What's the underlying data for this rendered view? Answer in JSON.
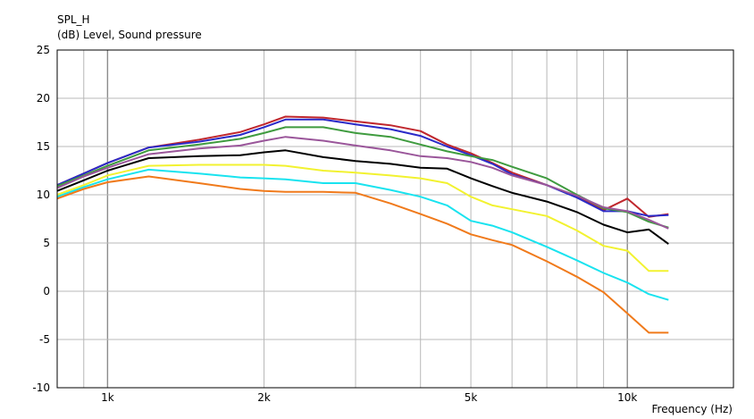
{
  "chart_data": {
    "type": "line",
    "title": "SPL_H",
    "ylabel": "(dB)  Level, Sound pressure",
    "xlabel": "Frequency  (Hz)",
    "x_scale": "log",
    "xlim": [
      800,
      16000
    ],
    "ylim": [
      -10,
      25
    ],
    "grid": true,
    "x_tick_labels": [
      {
        "value": 1000,
        "label": "1k"
      },
      {
        "value": 2000,
        "label": "2k"
      },
      {
        "value": 5000,
        "label": "5k"
      },
      {
        "value": 10000,
        "label": "10k"
      }
    ],
    "y_ticks": [
      25,
      20,
      15,
      10,
      5,
      0,
      -5,
      -10
    ],
    "series": [
      {
        "color": "#c0272d",
        "x": [
          800,
          900,
          1000,
          1200,
          1500,
          1800,
          2000,
          2200,
          2600,
          3000,
          3500,
          4000,
          4500,
          5000,
          5500,
          6000,
          7000,
          8000,
          9000,
          10000,
          11000,
          12000
        ],
        "y": [
          11.0,
          12.2,
          13.3,
          14.9,
          15.7,
          16.5,
          17.3,
          18.1,
          18.0,
          17.6,
          17.2,
          16.6,
          15.2,
          14.3,
          13.3,
          12.3,
          11.0,
          9.8,
          8.4,
          9.6,
          7.7,
          8.0
        ]
      },
      {
        "color": "#2a2ac8",
        "x": [
          800,
          900,
          1000,
          1200,
          1500,
          1800,
          2000,
          2200,
          2600,
          3000,
          3500,
          4000,
          4500,
          5000,
          5500,
          6000,
          7000,
          8000,
          9000,
          10000,
          11000,
          12000
        ],
        "y": [
          11.0,
          12.2,
          13.3,
          14.9,
          15.5,
          16.2,
          17.0,
          17.8,
          17.8,
          17.3,
          16.8,
          16.1,
          15.0,
          14.1,
          13.2,
          12.1,
          11.0,
          9.7,
          8.3,
          8.3,
          7.8,
          7.9
        ]
      },
      {
        "color": "#3f9b3f",
        "x": [
          800,
          900,
          1000,
          1200,
          1500,
          1800,
          2000,
          2200,
          2600,
          3000,
          3500,
          4000,
          4500,
          5000,
          5500,
          6000,
          7000,
          8000,
          9000,
          10000,
          11000,
          12000
        ],
        "y": [
          10.9,
          12.0,
          13.0,
          14.6,
          15.2,
          15.8,
          16.4,
          17.0,
          17.0,
          16.4,
          16.0,
          15.2,
          14.5,
          14.0,
          13.6,
          12.9,
          11.7,
          10.0,
          8.6,
          8.2,
          7.2,
          6.6
        ]
      },
      {
        "color": "#9a569a",
        "x": [
          800,
          900,
          1000,
          1200,
          1500,
          1800,
          2000,
          2200,
          2600,
          3000,
          3500,
          4000,
          4500,
          5000,
          5500,
          6000,
          7000,
          8000,
          9000,
          10000,
          11000,
          12000
        ],
        "y": [
          10.7,
          11.9,
          12.8,
          14.2,
          14.8,
          15.1,
          15.6,
          16.0,
          15.6,
          15.1,
          14.6,
          14.0,
          13.8,
          13.4,
          12.8,
          12.0,
          11.0,
          9.9,
          8.7,
          8.3,
          7.4,
          6.5
        ]
      },
      {
        "color": "#000000",
        "x": [
          800,
          900,
          1000,
          1200,
          1500,
          1800,
          2000,
          2200,
          2600,
          3000,
          3500,
          4000,
          4500,
          5000,
          5500,
          6000,
          7000,
          8000,
          9000,
          10000,
          11000,
          12000
        ],
        "y": [
          10.4,
          11.5,
          12.5,
          13.8,
          14.0,
          14.1,
          14.4,
          14.6,
          13.9,
          13.5,
          13.2,
          12.8,
          12.7,
          11.7,
          10.9,
          10.2,
          9.3,
          8.2,
          6.9,
          6.1,
          6.4,
          4.9
        ]
      },
      {
        "color": "#f2f230",
        "x": [
          800,
          900,
          1000,
          1200,
          1500,
          1800,
          2000,
          2200,
          2600,
          3000,
          3500,
          4000,
          4500,
          5000,
          5500,
          6000,
          7000,
          8000,
          9000,
          10000,
          11000,
          12000
        ],
        "y": [
          10.0,
          11.0,
          12.0,
          13.0,
          13.1,
          13.1,
          13.1,
          13.0,
          12.5,
          12.3,
          12.0,
          11.7,
          11.2,
          9.8,
          8.9,
          8.5,
          7.8,
          6.3,
          4.7,
          4.2,
          2.1,
          2.1
        ]
      },
      {
        "color": "#19e3ef",
        "x": [
          800,
          900,
          1000,
          1200,
          1500,
          1800,
          2000,
          2200,
          2600,
          3000,
          3500,
          4000,
          4500,
          5000,
          5500,
          6000,
          7000,
          8000,
          9000,
          10000,
          11000,
          12000
        ],
        "y": [
          9.8,
          10.8,
          11.6,
          12.6,
          12.2,
          11.8,
          11.7,
          11.6,
          11.2,
          11.2,
          10.5,
          9.8,
          8.9,
          7.3,
          6.8,
          6.1,
          4.6,
          3.2,
          1.9,
          0.9,
          -0.3,
          -0.9
        ]
      },
      {
        "color": "#f07a1b",
        "x": [
          800,
          900,
          1000,
          1200,
          1500,
          1800,
          2000,
          2200,
          2600,
          3000,
          3500,
          4000,
          4500,
          5000,
          5500,
          6000,
          7000,
          8000,
          9000,
          10000,
          11000,
          12000
        ],
        "y": [
          9.6,
          10.6,
          11.3,
          11.9,
          11.2,
          10.6,
          10.4,
          10.3,
          10.3,
          10.2,
          9.1,
          8.0,
          7.0,
          5.9,
          5.3,
          4.8,
          3.1,
          1.5,
          -0.1,
          -2.3,
          -4.3,
          -4.3
        ]
      }
    ]
  }
}
